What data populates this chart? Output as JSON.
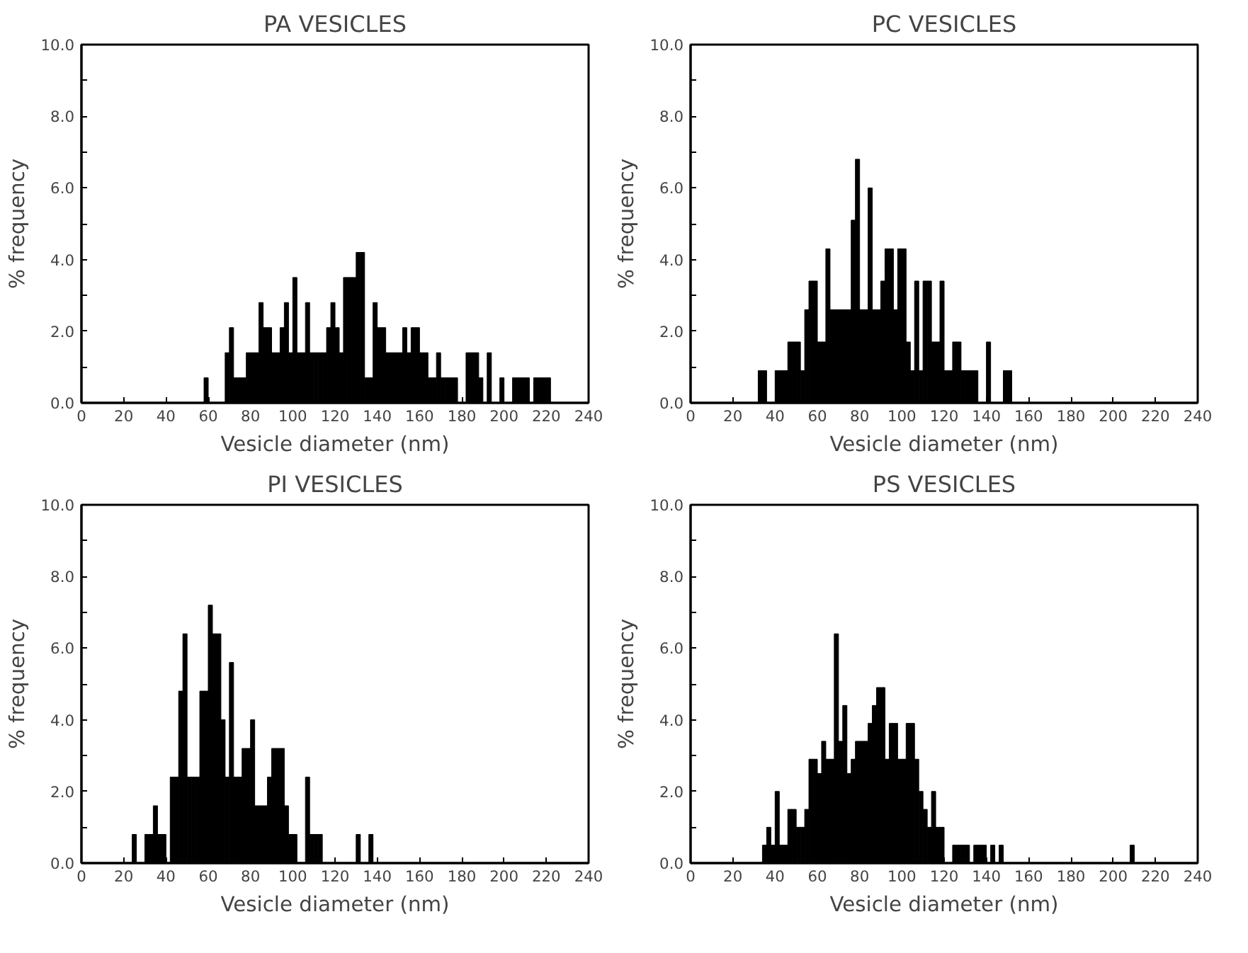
{
  "chart_data": [
    {
      "type": "histogram",
      "title": "PA VESICLES",
      "xlabel": "Vesicle diameter (nm)",
      "ylabel": "% frequency",
      "color": "#000000",
      "grid": false,
      "bins": [
        56,
        58,
        60,
        62,
        64,
        66,
        68,
        70,
        72,
        74,
        76,
        78,
        80,
        82,
        84,
        86,
        88,
        90,
        92,
        94,
        96,
        98,
        100,
        102,
        104,
        106,
        108,
        110,
        112,
        114,
        116,
        118,
        120,
        122,
        124,
        126,
        128,
        130,
        132,
        134,
        136,
        138,
        140,
        142,
        144,
        146,
        148,
        150,
        152,
        154,
        156,
        158,
        160,
        162,
        164,
        166,
        168,
        170,
        172,
        174,
        176,
        178,
        180,
        182,
        184,
        186,
        188,
        190,
        192,
        194,
        196,
        198,
        200,
        202,
        204,
        206,
        208,
        210,
        212,
        214,
        216,
        218,
        220,
        222,
        224
      ],
      "values": [
        0,
        0.7,
        0,
        0,
        0,
        0,
        1.4,
        2.1,
        0.7,
        0.7,
        0.7,
        1.4,
        1.4,
        1.4,
        2.8,
        2.1,
        2.1,
        1.4,
        1.4,
        2.1,
        2.8,
        1.4,
        3.5,
        1.4,
        1.4,
        2.8,
        1.4,
        1.4,
        1.4,
        1.4,
        2.1,
        2.8,
        2.1,
        1.4,
        3.5,
        3.5,
        3.5,
        4.2,
        4.2,
        0.7,
        0.7,
        2.8,
        2.1,
        2.1,
        1.4,
        1.4,
        1.4,
        1.4,
        2.1,
        1.4,
        2.1,
        2.1,
        1.4,
        1.4,
        0.7,
        0.7,
        1.4,
        0.7,
        0.7,
        0.7,
        0.7,
        0,
        0,
        1.4,
        1.4,
        1.4,
        0.7,
        0,
        1.4,
        0,
        0,
        0.7,
        0,
        0,
        0.7,
        0.7,
        0.7,
        0.7,
        0,
        0.7,
        0.7,
        0.7,
        0.7,
        0
      ],
      "xlim": [
        0,
        240
      ],
      "ylim": [
        0,
        10
      ],
      "xticks": [
        0,
        20,
        40,
        60,
        80,
        100,
        120,
        140,
        160,
        180,
        200,
        220,
        240
      ],
      "yticks": [
        {
          "value": 0,
          "label": "0.0"
        },
        {
          "value": 1,
          "label": null
        },
        {
          "value": 2,
          "label": "2.0"
        },
        {
          "value": 3,
          "label": null
        },
        {
          "value": 4,
          "label": "4.0"
        },
        {
          "value": 5,
          "label": null
        },
        {
          "value": 6,
          "label": "6.0"
        },
        {
          "value": 7,
          "label": null
        },
        {
          "value": 8,
          "label": "8.0"
        },
        {
          "value": 9,
          "label": null
        },
        {
          "value": 10,
          "label": "10.0"
        }
      ]
    },
    {
      "type": "histogram",
      "title": "PC VESICLES",
      "xlabel": "Vesicle diameter (nm)",
      "ylabel": "% frequency",
      "color": "#000000",
      "grid": false,
      "bins": [
        32,
        34,
        36,
        38,
        40,
        42,
        44,
        46,
        48,
        50,
        52,
        54,
        56,
        58,
        60,
        62,
        64,
        66,
        68,
        70,
        72,
        74,
        76,
        78,
        80,
        82,
        84,
        86,
        88,
        90,
        92,
        94,
        96,
        98,
        100,
        102,
        104,
        106,
        108,
        110,
        112,
        114,
        116,
        118,
        120,
        122,
        124,
        126,
        128,
        130,
        132,
        134,
        136,
        138,
        140,
        142,
        144,
        146,
        148,
        150,
        152
      ],
      "values": [
        0.9,
        0.9,
        0,
        0,
        0.9,
        0.9,
        0.9,
        1.7,
        1.7,
        1.7,
        0.9,
        2.6,
        3.4,
        3.4,
        1.7,
        1.7,
        4.3,
        2.6,
        2.6,
        2.6,
        2.6,
        2.6,
        5.1,
        6.8,
        2.6,
        2.6,
        6.0,
        2.6,
        2.6,
        3.4,
        4.3,
        4.3,
        2.6,
        4.3,
        4.3,
        1.7,
        0.9,
        3.4,
        0.9,
        3.4,
        3.4,
        1.7,
        1.7,
        3.4,
        0.9,
        0.9,
        1.7,
        1.7,
        0.9,
        0.9,
        0.9,
        0.9,
        0,
        0,
        1.7,
        0,
        0,
        0,
        0.9,
        0.9
      ],
      "xlim": [
        0,
        240
      ],
      "ylim": [
        0,
        10
      ],
      "xticks": [
        0,
        20,
        40,
        60,
        80,
        100,
        120,
        140,
        160,
        180,
        200,
        220,
        240
      ],
      "yticks": [
        {
          "value": 0,
          "label": "0.0"
        },
        {
          "value": 1,
          "label": null
        },
        {
          "value": 2,
          "label": "2.0"
        },
        {
          "value": 3,
          "label": null
        },
        {
          "value": 4,
          "label": "4.0"
        },
        {
          "value": 5,
          "label": null
        },
        {
          "value": 6,
          "label": "6.0"
        },
        {
          "value": 7,
          "label": null
        },
        {
          "value": 8,
          "label": "8.0"
        },
        {
          "value": 9,
          "label": null
        },
        {
          "value": 10,
          "label": "10.0"
        }
      ]
    },
    {
      "type": "histogram",
      "title": "PI VESICLES",
      "xlabel": "Vesicle diameter (nm)",
      "ylabel": "% frequency",
      "color": "#000000",
      "grid": false,
      "bins": [
        24,
        26,
        28,
        30,
        32,
        34,
        36,
        38,
        40,
        42,
        44,
        46,
        48,
        50,
        52,
        54,
        56,
        58,
        60,
        62,
        64,
        66,
        68,
        70,
        72,
        74,
        76,
        78,
        80,
        82,
        84,
        86,
        88,
        90,
        92,
        94,
        96,
        98,
        100,
        102,
        104,
        106,
        108,
        110,
        112,
        114,
        116,
        118,
        120,
        122,
        124,
        126,
        128,
        130,
        132,
        134,
        136,
        138
      ],
      "values": [
        0.8,
        0,
        0,
        0.8,
        0.8,
        1.6,
        0.8,
        0.8,
        0,
        2.4,
        2.4,
        4.8,
        6.4,
        2.4,
        2.4,
        2.4,
        4.8,
        4.8,
        7.2,
        6.4,
        6.4,
        4.0,
        2.4,
        5.6,
        2.4,
        2.4,
        3.2,
        3.2,
        4.0,
        1.6,
        1.6,
        1.6,
        2.4,
        3.2,
        3.2,
        3.2,
        1.6,
        0.8,
        0.8,
        0,
        0,
        2.4,
        0.8,
        0.8,
        0.8,
        0,
        0,
        0,
        0,
        0,
        0,
        0,
        0,
        0.8,
        0,
        0,
        0.8
      ],
      "xlim": [
        0,
        240
      ],
      "ylim": [
        0,
        10
      ],
      "xticks": [
        0,
        20,
        40,
        60,
        80,
        100,
        120,
        140,
        160,
        180,
        200,
        220,
        240
      ],
      "yticks": [
        {
          "value": 0,
          "label": "0.0"
        },
        {
          "value": 1,
          "label": null
        },
        {
          "value": 2,
          "label": "2.0"
        },
        {
          "value": 3,
          "label": null
        },
        {
          "value": 4,
          "label": "4.0"
        },
        {
          "value": 5,
          "label": null
        },
        {
          "value": 6,
          "label": "6.0"
        },
        {
          "value": 7,
          "label": null
        },
        {
          "value": 8,
          "label": "8.0"
        },
        {
          "value": 9,
          "label": null
        },
        {
          "value": 10,
          "label": "10.0"
        }
      ]
    },
    {
      "type": "histogram",
      "title": "PS VESICLES",
      "xlabel": "Vesicle diameter (nm)",
      "ylabel": "% frequency",
      "color": "#000000",
      "grid": false,
      "bins": [
        34,
        36,
        38,
        40,
        42,
        44,
        46,
        48,
        50,
        52,
        54,
        56,
        58,
        60,
        62,
        64,
        66,
        68,
        70,
        72,
        74,
        76,
        78,
        80,
        82,
        84,
        86,
        88,
        90,
        92,
        94,
        96,
        98,
        100,
        102,
        104,
        106,
        108,
        110,
        112,
        114,
        116,
        118,
        120,
        122,
        124,
        126,
        128,
        130,
        132,
        134,
        136,
        138,
        140,
        142,
        144,
        146,
        148,
        150,
        152,
        154,
        156,
        158,
        160,
        162,
        164,
        166,
        168,
        170,
        172,
        174,
        176,
        178,
        180,
        182,
        184,
        186,
        188,
        190,
        192,
        194,
        196,
        198,
        200,
        202,
        204,
        206,
        208,
        210
      ],
      "values": [
        0.5,
        1.0,
        0.5,
        2.0,
        0.5,
        0.5,
        1.5,
        1.5,
        1.0,
        1.0,
        1.5,
        2.9,
        2.9,
        2.5,
        3.4,
        2.9,
        2.9,
        6.4,
        3.4,
        4.4,
        2.5,
        2.9,
        3.4,
        3.4,
        3.4,
        3.9,
        4.4,
        4.9,
        4.9,
        2.9,
        3.9,
        3.9,
        2.9,
        2.9,
        3.9,
        3.9,
        2.9,
        2.0,
        1.5,
        1.0,
        2.0,
        1.0,
        1.0,
        0,
        0,
        0.5,
        0.5,
        0.5,
        0.5,
        0,
        0.5,
        0.5,
        0.5,
        0,
        0.5,
        0,
        0.5,
        0,
        0,
        0,
        0,
        0,
        0,
        0,
        0,
        0,
        0,
        0,
        0,
        0,
        0,
        0,
        0,
        0,
        0,
        0,
        0,
        0,
        0,
        0,
        0,
        0,
        0,
        0,
        0,
        0,
        0,
        0.5
      ],
      "xlim": [
        0,
        240
      ],
      "ylim": [
        0,
        10
      ],
      "xticks": [
        0,
        20,
        40,
        60,
        80,
        100,
        120,
        140,
        160,
        180,
        200,
        220,
        240
      ],
      "yticks": [
        {
          "value": 0,
          "label": "0.0"
        },
        {
          "value": 1,
          "label": null
        },
        {
          "value": 2,
          "label": "2.0"
        },
        {
          "value": 3,
          "label": null
        },
        {
          "value": 4,
          "label": "4.0"
        },
        {
          "value": 5,
          "label": null
        },
        {
          "value": 6,
          "label": "6.0"
        },
        {
          "value": 7,
          "label": null
        },
        {
          "value": 8,
          "label": "8.0"
        },
        {
          "value": 9,
          "label": null
        },
        {
          "value": 10,
          "label": "10.0"
        }
      ]
    }
  ]
}
